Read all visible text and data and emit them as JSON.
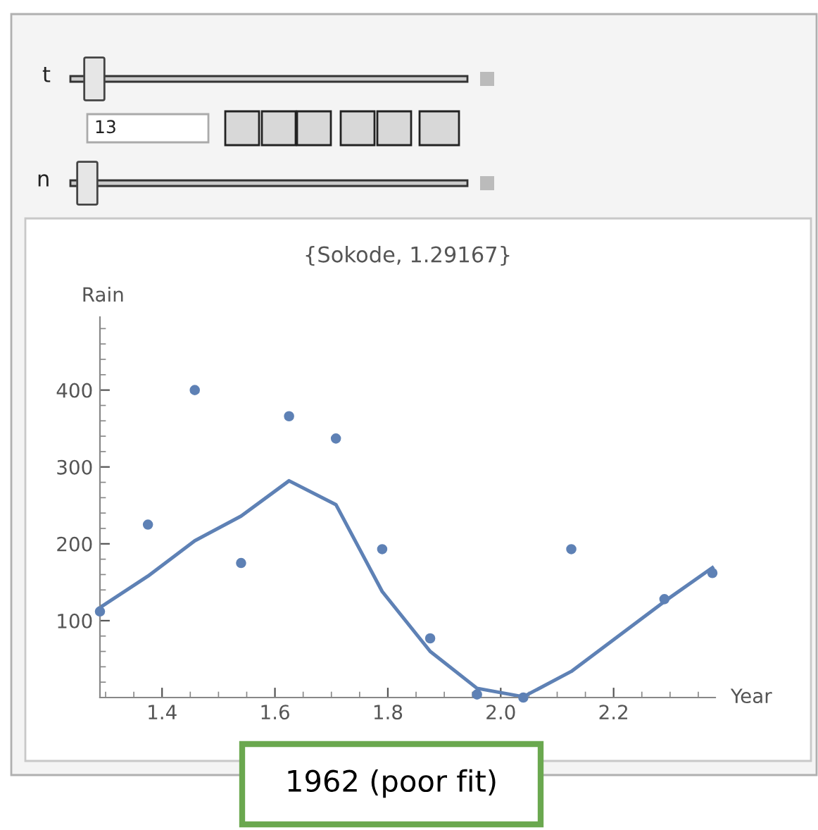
{
  "chart_data": {
    "type": "scatter",
    "title": "{Sokode, 1.29167}",
    "xlabel": "Year",
    "ylabel": "Rain",
    "annotations": [
      "t",
      "13",
      "n",
      "1962 (poor fit)"
    ],
    "series": [
      {
        "type": "scatter",
        "color": "#5e81b5",
        "marker": "circle",
        "x": [
          1.29,
          1.375,
          1.458,
          1.54,
          1.625,
          1.708,
          1.79,
          1.875,
          1.958,
          2.04,
          2.125,
          2.29,
          2.375
        ],
        "values": [
          112,
          225,
          400,
          175,
          366,
          337,
          193,
          77,
          4,
          0,
          193,
          128,
          162
        ]
      },
      {
        "type": "line",
        "color": "#5e81b5",
        "line_style": "solid",
        "x": [
          1.29,
          1.375,
          1.458,
          1.54,
          1.625,
          1.708,
          1.79,
          1.875,
          1.958,
          2.04,
          2.125,
          2.29,
          2.375
        ],
        "values": [
          117,
          158,
          204,
          236,
          282,
          251,
          138,
          60,
          12,
          1,
          34,
          125,
          169
        ]
      }
    ],
    "xlim": [
      1.29,
      2.38
    ],
    "xticks": [
      1.4,
      1.6,
      1.8,
      {
        "value": 2.0,
        "label": "2.0"
      },
      2.2
    ],
    "ylim": [
      0,
      495
    ],
    "yticks": [
      100,
      200,
      300,
      400
    ],
    "grid": false,
    "legend": false
  }
}
